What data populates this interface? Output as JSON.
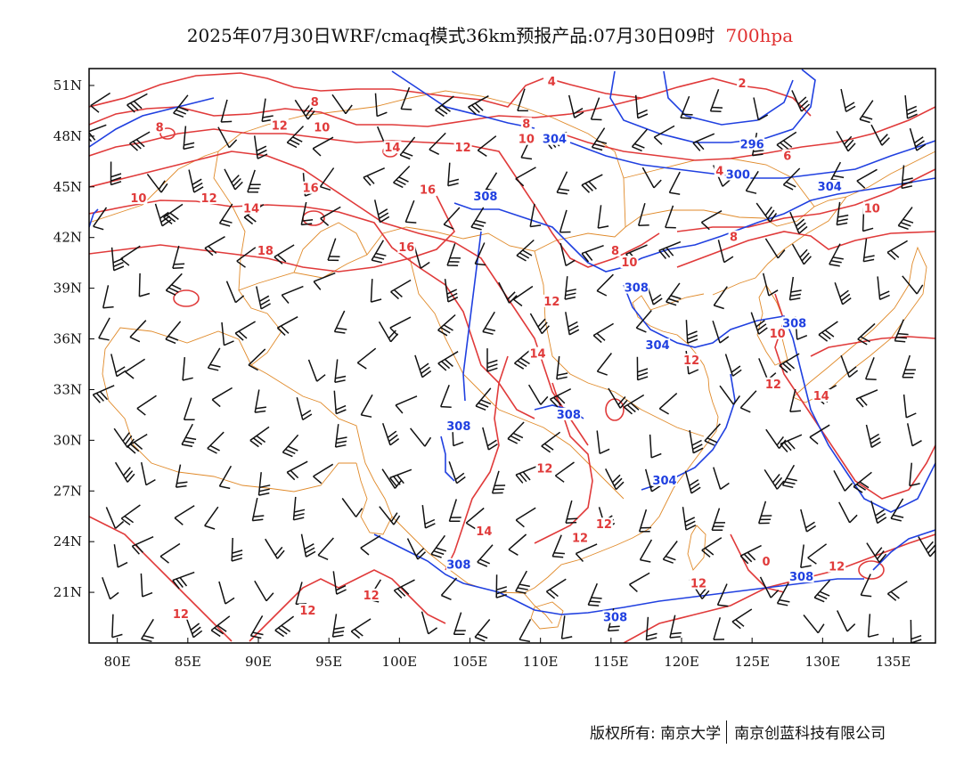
{
  "header": {
    "title": "2025年07月30日WRF/cmaq模式36km预报产品:07月30日09时",
    "level": "700hpa"
  },
  "axes": {
    "lat_ticks": [
      "51N",
      "48N",
      "45N",
      "42N",
      "39N",
      "36N",
      "33N",
      "30N",
      "27N",
      "24N",
      "21N"
    ],
    "lon_ticks": [
      "80E",
      "85E",
      "90E",
      "95E",
      "100E",
      "105E",
      "110E",
      "115E",
      "120E",
      "125E",
      "130E",
      "135E"
    ]
  },
  "map": {
    "extent": {
      "lon_min": 78,
      "lon_max": 138,
      "lat_min": 18,
      "lat_max": 52
    },
    "colors": {
      "temperature": "#e03a3a",
      "geopotential": "#2040e0",
      "border": "#e08a2a",
      "wind": "#111111",
      "frame": "#000000"
    },
    "temperature_labels": [
      {
        "text": "8",
        "lon": 94.0,
        "lat": 50.0
      },
      {
        "text": "8",
        "lon": 83.0,
        "lat": 48.5
      },
      {
        "text": "12",
        "lon": 91.5,
        "lat": 48.6
      },
      {
        "text": "10",
        "lon": 94.5,
        "lat": 48.5
      },
      {
        "text": "14",
        "lon": 99.5,
        "lat": 47.3
      },
      {
        "text": "12",
        "lon": 104.5,
        "lat": 47.3
      },
      {
        "text": "4",
        "lon": 110.8,
        "lat": 51.2
      },
      {
        "text": "8",
        "lon": 109.0,
        "lat": 48.7
      },
      {
        "text": "10",
        "lon": 109.0,
        "lat": 47.8
      },
      {
        "text": "2",
        "lon": 124.3,
        "lat": 51.1
      },
      {
        "text": "6",
        "lon": 127.5,
        "lat": 46.8
      },
      {
        "text": "4",
        "lon": 122.7,
        "lat": 45.9
      },
      {
        "text": "10",
        "lon": 81.5,
        "lat": 44.3
      },
      {
        "text": "12",
        "lon": 86.5,
        "lat": 44.3
      },
      {
        "text": "14",
        "lon": 89.5,
        "lat": 43.7
      },
      {
        "text": "16",
        "lon": 93.7,
        "lat": 44.9
      },
      {
        "text": "16",
        "lon": 102.0,
        "lat": 44.8
      },
      {
        "text": "16",
        "lon": 100.5,
        "lat": 41.4
      },
      {
        "text": "18",
        "lon": 90.5,
        "lat": 41.2
      },
      {
        "text": "10",
        "lon": 133.5,
        "lat": 43.7
      },
      {
        "text": "8",
        "lon": 123.7,
        "lat": 42.0
      },
      {
        "text": "8",
        "lon": 115.3,
        "lat": 41.2
      },
      {
        "text": "10",
        "lon": 116.3,
        "lat": 40.5
      },
      {
        "text": "12",
        "lon": 110.8,
        "lat": 38.2
      },
      {
        "text": "10",
        "lon": 126.8,
        "lat": 36.3
      },
      {
        "text": "14",
        "lon": 109.8,
        "lat": 35.1
      },
      {
        "text": "12",
        "lon": 120.7,
        "lat": 34.7
      },
      {
        "text": "12",
        "lon": 126.5,
        "lat": 33.3
      },
      {
        "text": "14",
        "lon": 129.9,
        "lat": 32.6
      },
      {
        "text": "12",
        "lon": 110.3,
        "lat": 28.3
      },
      {
        "text": "12",
        "lon": 114.5,
        "lat": 25.0
      },
      {
        "text": "12",
        "lon": 112.8,
        "lat": 24.2
      },
      {
        "text": "14",
        "lon": 106.0,
        "lat": 24.6
      },
      {
        "text": "12",
        "lon": 131.0,
        "lat": 22.5
      },
      {
        "text": "12",
        "lon": 121.2,
        "lat": 21.5
      },
      {
        "text": "12",
        "lon": 98.0,
        "lat": 20.8
      },
      {
        "text": "12",
        "lon": 93.5,
        "lat": 19.9
      },
      {
        "text": "12",
        "lon": 84.5,
        "lat": 19.7
      },
      {
        "text": "0",
        "lon": 126.0,
        "lat": 22.8
      }
    ],
    "height_labels": [
      {
        "text": "304",
        "lon": 111.0,
        "lat": 47.8
      },
      {
        "text": "296",
        "lon": 125.0,
        "lat": 47.5
      },
      {
        "text": "300",
        "lon": 124.0,
        "lat": 45.7
      },
      {
        "text": "304",
        "lon": 130.5,
        "lat": 45.0
      },
      {
        "text": "308",
        "lon": 106.1,
        "lat": 44.4
      },
      {
        "text": "308",
        "lon": 116.8,
        "lat": 39.0
      },
      {
        "text": "308",
        "lon": 128.0,
        "lat": 36.9
      },
      {
        "text": "304",
        "lon": 118.3,
        "lat": 35.6
      },
      {
        "text": "308",
        "lon": 112.0,
        "lat": 31.5
      },
      {
        "text": "308",
        "lon": 104.2,
        "lat": 30.8
      },
      {
        "text": "304",
        "lon": 118.8,
        "lat": 27.6
      },
      {
        "text": "308",
        "lon": 104.2,
        "lat": 22.6
      },
      {
        "text": "308",
        "lon": 128.5,
        "lat": 21.9
      },
      {
        "text": "308",
        "lon": 115.3,
        "lat": 19.5
      }
    ]
  },
  "footer": {
    "left": "版权所有: 南京大学",
    "right": "南京创蓝科技有限公司"
  }
}
